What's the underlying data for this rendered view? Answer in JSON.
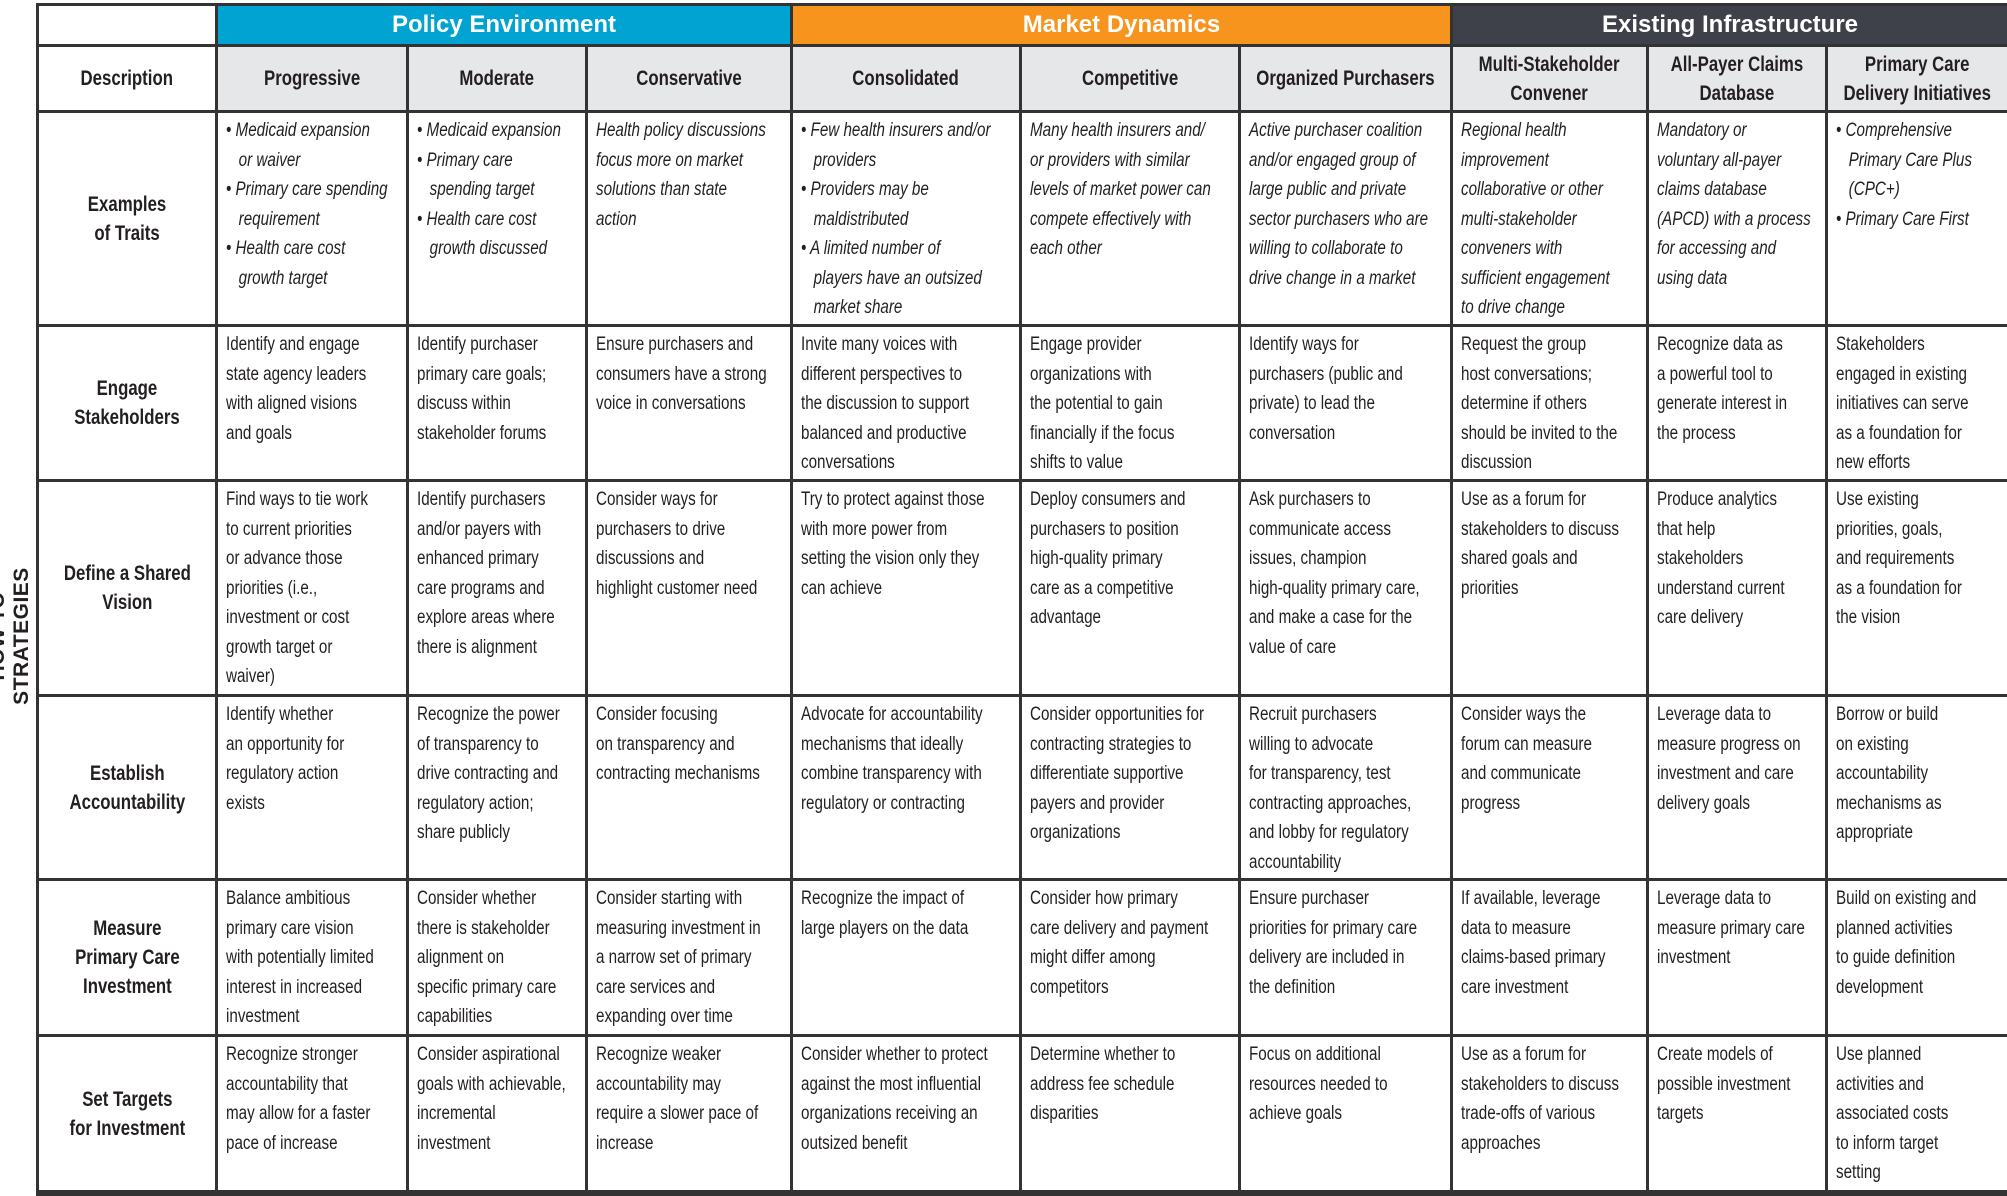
{
  "side_label": "HOW TO STRATEGIES",
  "groups": [
    {
      "label": "Policy Environment",
      "color": "#00a3d2"
    },
    {
      "label": "Market Dynamics",
      "color": "#f7941d"
    },
    {
      "label": "Existing Infrastructure",
      "color": "#3e4149"
    }
  ],
  "description_header": "Description",
  "columns": [
    "Progressive",
    "Moderate",
    "Conservative",
    "Consolidated",
    "Competitive",
    "Organized Purchasers",
    "Multi-Stakeholder\nConvener",
    "All-Payer Claims\nDatabase",
    "Primary Care\nDelivery Initiatives"
  ],
  "rows": [
    {
      "label": "Examples\nof Traits",
      "italic": true,
      "cells": [
        "• Medicaid expansion\n   or waiver\n• Primary care spending\n   requirement\n• Health care cost\n   growth target",
        "• Medicaid expansion\n• Primary care\n   spending target\n• Health care cost\n   growth discussed",
        "Health policy discussions\nfocus more on market\nsolutions than state\naction",
        "• Few health insurers and/or\n   providers\n• Providers may be\n   maldistributed\n• A limited number of\n   players have an outsized\n   market share",
        "Many health insurers and/\nor providers with similar\nlevels of market power can\ncompete effectively with\neach other",
        "Active purchaser coalition\nand/or engaged group of\nlarge public and private\nsector purchasers who are\nwilling to collaborate to\ndrive change in a market",
        "Regional health\nimprovement\ncollaborative or other\nmulti-stakeholder\nconveners with\nsufficient engagement\nto drive change",
        "Mandatory or\nvoluntary all-payer\nclaims database\n(APCD) with a process\nfor accessing and\nusing data",
        "• Comprehensive\n   Primary Care Plus\n   (CPC+)\n• Primary Care First"
      ]
    },
    {
      "label": "Engage\nStakeholders",
      "italic": false,
      "cells": [
        "Identify and engage\nstate agency leaders\nwith aligned visions\nand goals",
        "Identify purchaser\nprimary care goals;\ndiscuss within\nstakeholder forums",
        "Ensure purchasers and\nconsumers have a strong\nvoice in conversations",
        "Invite many voices with\ndifferent perspectives to\nthe discussion to support\nbalanced and productive\nconversations",
        "Engage provider\norganizations with\nthe potential to gain\nfinancially if the focus\nshifts to value",
        "Identify ways for\npurchasers (public and\nprivate) to lead the\nconversation",
        "Request the group\nhost conversations;\ndetermine if others\nshould be invited to the\ndiscussion",
        "Recognize data as\na powerful tool to\ngenerate interest in\nthe process",
        "Stakeholders\nengaged in existing\ninitiatives can serve\nas a foundation for\nnew efforts"
      ]
    },
    {
      "label": "Define a Shared\nVision",
      "italic": false,
      "cells": [
        "Find ways to tie work\nto current priorities\nor advance those\npriorities (i.e.,\ninvestment or cost\ngrowth target or\nwaiver)",
        "Identify purchasers\nand/or payers with\nenhanced primary\ncare programs and\nexplore areas where\nthere is alignment",
        "Consider ways for\npurchasers to drive\ndiscussions and\nhighlight customer need",
        "Try to protect against those\nwith more power from\nsetting the vision only they\ncan achieve",
        "Deploy consumers and\npurchasers to position\nhigh-quality primary\ncare as a competitive\nadvantage",
        "Ask purchasers to\ncommunicate access\nissues, champion\nhigh-quality primary care,\nand make a case for the\nvalue of care",
        "Use as a forum for\nstakeholders to discuss\nshared goals and\npriorities",
        "Produce analytics\nthat help\nstakeholders\nunderstand current\ncare delivery",
        "Use existing\npriorities, goals,\nand requirements\nas a foundation for\nthe vision"
      ]
    },
    {
      "label": "Establish\nAccountability",
      "italic": false,
      "cells": [
        "Identify whether\nan opportunity for\nregulatory action\nexists",
        "Recognize the power\nof transparency to\ndrive contracting and\nregulatory action;\nshare publicly",
        "Consider focusing\non transparency and\ncontracting mechanisms",
        "Advocate for accountability\nmechanisms that ideally\ncombine transparency with\nregulatory or contracting",
        "Consider opportunities for\ncontracting strategies to\ndifferentiate supportive\npayers and provider\norganizations",
        "Recruit purchasers\nwilling to advocate\nfor transparency, test\ncontracting approaches,\nand lobby for regulatory\naccountability",
        "Consider ways the\nforum can measure\nand communicate\nprogress",
        "Leverage data to\nmeasure progress on\ninvestment and care\ndelivery goals",
        "Borrow or build\non existing\naccountability\nmechanisms as\nappropriate"
      ]
    },
    {
      "label": "Measure\nPrimary Care\nInvestment",
      "italic": false,
      "cells": [
        "Balance ambitious\nprimary care vision\nwith potentially limited\ninterest in increased\ninvestment",
        "Consider whether\nthere is stakeholder\nalignment on\nspecific primary care\ncapabilities",
        "Consider starting with\nmeasuring investment in\na narrow set of primary\ncare services and\nexpanding over time",
        "Recognize the impact of\nlarge players on the data",
        "Consider how primary\ncare delivery and payment\nmight differ among\ncompetitors",
        "Ensure purchaser\npriorities for primary care\ndelivery are included in\nthe definition",
        "If available, leverage\ndata to measure\nclaims-based primary\ncare investment",
        "Leverage data to\nmeasure primary care\ninvestment",
        "Build on existing and\nplanned activities\nto guide definition\ndevelopment"
      ]
    },
    {
      "label": "Set Targets\nfor Investment",
      "italic": false,
      "cells": [
        "Recognize stronger\naccountability that\nmay allow for a faster\npace of increase",
        "Consider aspirational\ngoals with achievable,\nincremental\ninvestment",
        "Recognize weaker\naccountability may\nrequire a slower pace of\nincrease",
        "Consider whether to protect\nagainst the most influential\norganizations receiving an\noutsized benefit",
        "Determine whether to\naddress fee schedule\ndisparities",
        "Focus on additional\nresources needed to\nachieve goals",
        "Use as a forum for\nstakeholders to discuss\ntrade-offs of various\napproaches",
        "Create models of\npossible investment\ntargets",
        "Use planned\nactivities and\nassociated costs\nto inform target\nsetting"
      ]
    }
  ]
}
